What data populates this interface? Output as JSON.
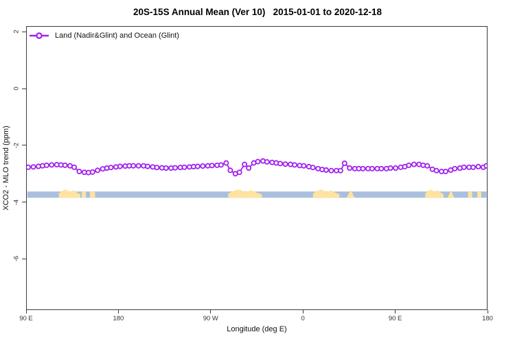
{
  "title": "20S-15S Annual Mean (Ver 10)   2015-01-01 to 2020-12-18",
  "legend": {
    "label": "Land (Nadir&Glint) and Ocean (Glint)"
  },
  "colors": {
    "series": "#A020F0",
    "marker_fill": "#FFFFFF",
    "ocean_band": "#A9BFDD",
    "land_band": "#FFE39E",
    "axis": "#3a3a3a",
    "text": "#111111"
  },
  "axes": {
    "x": {
      "label": "Longitude (deg E)",
      "ticks": [
        {
          "value": 90,
          "label": "90 E"
        },
        {
          "value": 180,
          "label": "180"
        },
        {
          "value": 270,
          "label": "90 W"
        },
        {
          "value": 360,
          "label": "0"
        },
        {
          "value": 450,
          "label": "90 E"
        },
        {
          "value": 540,
          "label": "180"
        }
      ]
    },
    "y": {
      "label": "XCO2 - MLO trend (ppm)",
      "ticks": [
        {
          "value": 2,
          "label": "2"
        },
        {
          "value": 0,
          "label": "0"
        },
        {
          "value": -2,
          "label": "-2"
        },
        {
          "value": -4,
          "label": "-4"
        },
        {
          "value": -6,
          "label": "-6"
        }
      ]
    }
  },
  "chart_data": {
    "type": "line",
    "title": "20S-15S Annual Mean (Ver 10)   2015-01-01 to 2020-12-18",
    "xlabel": "Longitude (deg E)",
    "ylabel": "XCO2 - MLO trend (ppm)",
    "xlim": [
      90,
      540
    ],
    "ylim": [
      2.2,
      -7.8
    ],
    "x_axis_note": "longitude axis wraps eastward: 90E, 180, 90W, 0, 90E, 180",
    "grid": false,
    "legend_position": "top-left",
    "series": [
      {
        "name": "Land (Nadir&Glint) and Ocean (Glint)",
        "marker": "open-circle",
        "x": [
          91,
          96,
          101,
          105,
          109,
          114,
          119,
          123,
          127,
          132,
          136,
          141,
          146,
          150,
          154,
          159,
          164,
          168,
          172,
          177,
          181,
          186,
          190,
          194,
          199,
          204,
          208,
          213,
          217,
          222,
          226,
          231,
          235,
          240,
          244,
          249,
          253,
          257,
          262,
          267,
          271,
          276,
          280,
          285,
          289,
          294,
          298,
          303,
          307,
          312,
          316,
          321,
          325,
          330,
          334,
          338,
          343,
          348,
          352,
          357,
          361,
          366,
          370,
          375,
          379,
          383,
          388,
          393,
          397,
          401,
          406,
          411,
          415,
          419,
          424,
          428,
          433,
          437,
          442,
          446,
          451,
          456,
          460,
          464,
          469,
          474,
          478,
          482,
          487,
          491,
          496,
          500,
          505,
          509,
          514,
          518,
          523,
          527,
          532,
          537,
          540
        ],
        "y": [
          -2.77,
          -2.76,
          -2.74,
          -2.72,
          -2.7,
          -2.69,
          -2.68,
          -2.69,
          -2.7,
          -2.72,
          -2.77,
          -2.92,
          -2.95,
          -2.96,
          -2.94,
          -2.88,
          -2.83,
          -2.8,
          -2.78,
          -2.76,
          -2.74,
          -2.73,
          -2.72,
          -2.72,
          -2.72,
          -2.72,
          -2.74,
          -2.76,
          -2.78,
          -2.79,
          -2.8,
          -2.8,
          -2.79,
          -2.78,
          -2.77,
          -2.76,
          -2.75,
          -2.74,
          -2.73,
          -2.72,
          -2.71,
          -2.7,
          -2.69,
          -2.62,
          -2.88,
          -3.0,
          -2.95,
          -2.67,
          -2.8,
          -2.62,
          -2.57,
          -2.55,
          -2.58,
          -2.6,
          -2.62,
          -2.64,
          -2.66,
          -2.67,
          -2.69,
          -2.71,
          -2.72,
          -2.75,
          -2.78,
          -2.82,
          -2.85,
          -2.87,
          -2.89,
          -2.89,
          -2.89,
          -2.63,
          -2.8,
          -2.82,
          -2.82,
          -2.82,
          -2.82,
          -2.82,
          -2.82,
          -2.82,
          -2.82,
          -2.8,
          -2.8,
          -2.77,
          -2.75,
          -2.7,
          -2.67,
          -2.67,
          -2.7,
          -2.72,
          -2.84,
          -2.89,
          -2.92,
          -2.92,
          -2.87,
          -2.82,
          -2.8,
          -2.77,
          -2.77,
          -2.77,
          -2.75,
          -2.77,
          -2.72
        ]
      }
    ],
    "surface_type_band": {
      "description": "horizontal strip marking ocean (blue) vs land (yellow) along longitude",
      "ppm_top": -3.63,
      "ppm_bottom": -3.85,
      "land_segments_lon": [
        [
          121,
          142
        ],
        [
          143.5,
          147.5
        ],
        [
          151.5,
          156.5
        ],
        [
          287,
          320
        ],
        [
          370,
          396
        ],
        [
          403,
          411
        ],
        [
          480,
          498
        ],
        [
          502,
          508.5
        ],
        [
          522,
          526
        ],
        [
          531,
          535
        ]
      ],
      "wedge_segments": [
        5,
        7
      ]
    }
  }
}
